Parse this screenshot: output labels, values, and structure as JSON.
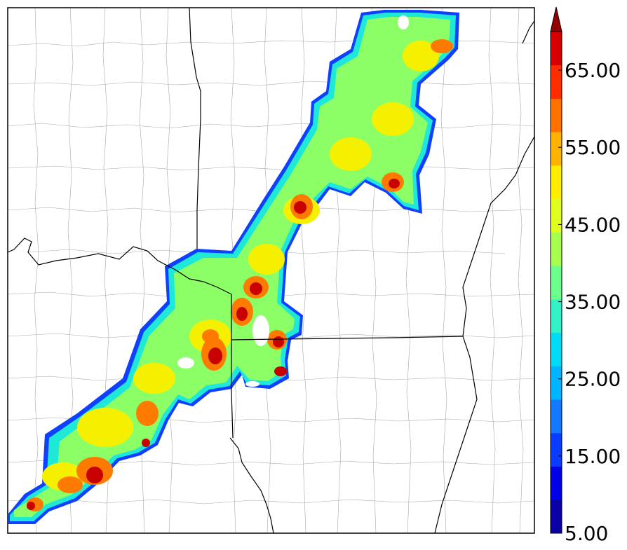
{
  "map": {
    "background": "#ffffff",
    "county_line_color": "#9a9a9a",
    "state_line_color": "#000000",
    "storm_swath": {
      "shape": "SW-NE oriented swath of radar reflectivity crossing several states",
      "fill_levels_dbz": [
        15,
        25,
        35,
        45,
        55,
        65
      ]
    }
  },
  "colorbar": {
    "min": 5,
    "max": 70,
    "step": 5,
    "extend": "max",
    "colors": [
      "#0a00a8",
      "#0000e6",
      "#0a3cff",
      "#1479ff",
      "#00b4ff",
      "#00dcf5",
      "#33f2c8",
      "#6cff8c",
      "#a6ff4f",
      "#e0ff1e",
      "#ffee00",
      "#ffb300",
      "#ff7200",
      "#ff2d00",
      "#d60000",
      "#960000"
    ],
    "tick_labels": [
      "5.00",
      "15.00",
      "25.00",
      "35.00",
      "45.00",
      "55.00",
      "65.00"
    ],
    "tick_values": [
      5,
      15,
      25,
      35,
      45,
      55,
      65
    ]
  }
}
